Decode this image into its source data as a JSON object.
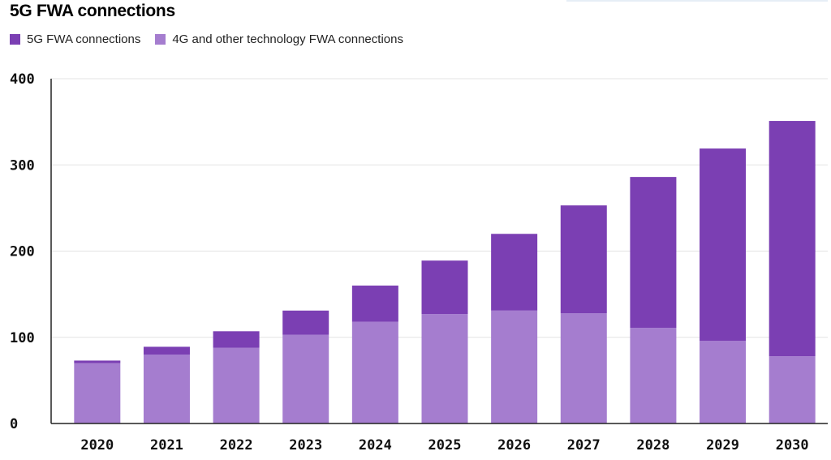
{
  "chart_data": {
    "type": "bar",
    "stacked": true,
    "title": "5G FWA connections",
    "categories": [
      "2020",
      "2021",
      "2022",
      "2023",
      "2024",
      "2025",
      "2026",
      "2027",
      "2028",
      "2029",
      "2030"
    ],
    "series": [
      {
        "name": "4G and other technology FWA connections",
        "color": "#a57dcf",
        "values": [
          70,
          80,
          88,
          103,
          118,
          127,
          131,
          128,
          111,
          96,
          78
        ]
      },
      {
        "name": "5G FWA connections",
        "color": "#7b3fb3",
        "values": [
          3,
          9,
          19,
          28,
          42,
          62,
          89,
          125,
          175,
          223,
          273
        ]
      }
    ],
    "ylim": [
      0,
      400
    ],
    "yticks": [
      "0",
      "100",
      "200",
      "300",
      "400"
    ],
    "grid": true,
    "legend": "top-left"
  },
  "legend": [
    {
      "label": "5G FWA connections",
      "color": "#7b3fb3"
    },
    {
      "label": "4G and other technology FWA connections",
      "color": "#a57dcf"
    }
  ]
}
